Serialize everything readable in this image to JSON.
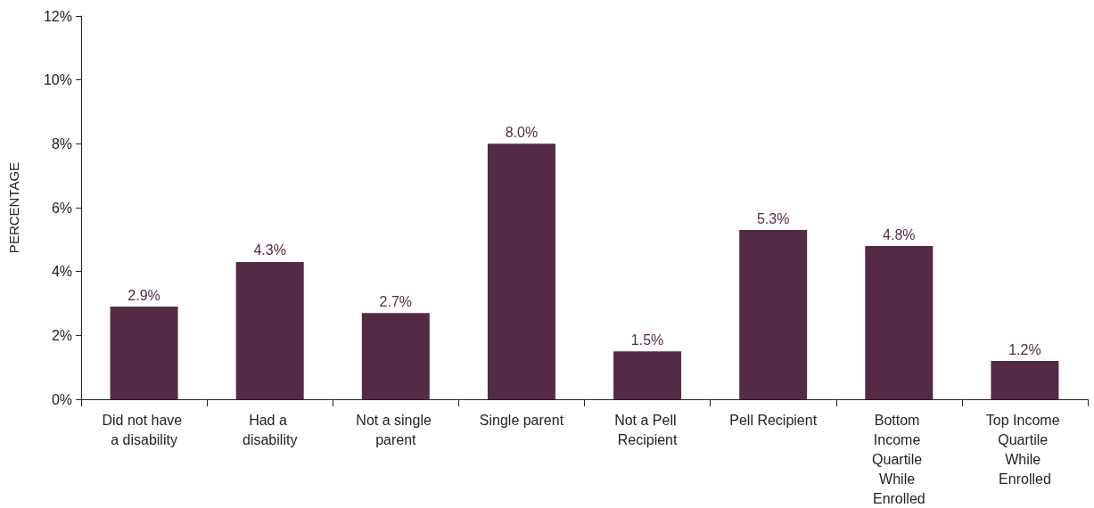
{
  "chart_data": {
    "type": "bar",
    "ylabel": "PERCENTAGE",
    "categories": [
      "Did not have a disability",
      "Had a disability",
      "Not a single parent",
      "Single parent",
      "Not a Pell Recipient",
      "Pell Recipient",
      "Bottom Income Quartile While Enrolled",
      "Top Income Quartile While Enrolled"
    ],
    "values": [
      2.9,
      4.3,
      2.7,
      8.0,
      1.5,
      5.3,
      4.8,
      1.2
    ],
    "value_labels": [
      "2.9%",
      "4.3%",
      "2.7%",
      "8.0%",
      "1.5%",
      "5.3%",
      "4.8%",
      "1.2%"
    ],
    "color": "#552a45",
    "ylim": [
      0,
      12
    ],
    "yticks": [
      {
        "value": 0,
        "label": "0%"
      },
      {
        "value": 2,
        "label": "2%"
      },
      {
        "value": 4,
        "label": "4%"
      },
      {
        "value": 6,
        "label": "6%"
      },
      {
        "value": 8,
        "label": "8%"
      },
      {
        "value": 10,
        "label": "10%"
      },
      {
        "value": 12,
        "label": "12%"
      }
    ],
    "grid": false
  }
}
